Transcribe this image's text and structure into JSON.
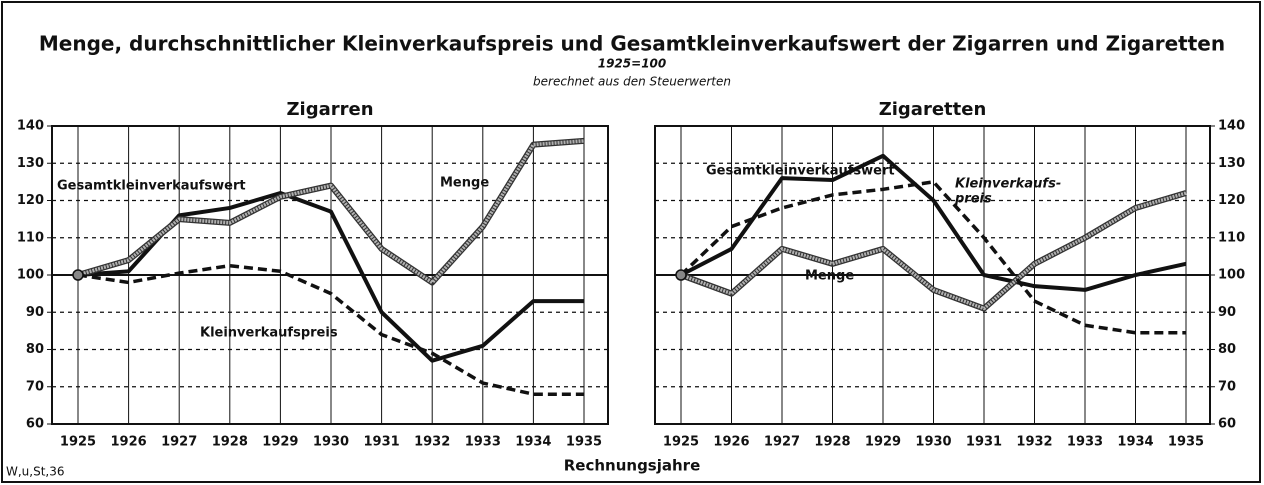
{
  "title": "Menge, durchschnittlicher Kleinverkaufspreis und Gesamtkleinverkaufswert der Zigarren und Zigaretten",
  "subtitle": "1925=100",
  "note": "berechnet aus den Steuerwerten",
  "xlabel": "Rechnungsjahre",
  "source": "W,u,St,36",
  "chart_data": [
    {
      "type": "line",
      "title": "Zigarren",
      "categories": [
        "1925",
        "1926",
        "1927",
        "1928",
        "1929",
        "1930",
        "1931",
        "1932",
        "1933",
        "1934",
        "1935"
      ],
      "ylim": [
        60,
        140
      ],
      "yticks": [
        60,
        70,
        80,
        90,
        100,
        110,
        120,
        130,
        140
      ],
      "grid": true,
      "ytick_side": "left",
      "series": [
        {
          "name": "Gesamtkleinverkaufswert",
          "color": "#111111",
          "style": "solid",
          "values": [
            100,
            101,
            116,
            118,
            122,
            117,
            90,
            77,
            81,
            93,
            93
          ]
        },
        {
          "name": "Menge",
          "color": "#b0b0b0",
          "style": "double",
          "values": [
            100,
            104,
            115,
            114,
            121,
            124,
            107,
            98,
            113,
            135,
            136
          ]
        },
        {
          "name": "Kleinverkaufspreis",
          "color": "#111111",
          "style": "dashed",
          "values": [
            100,
            98,
            100.5,
            102.5,
            101,
            95,
            84,
            79,
            71,
            68,
            68
          ]
        }
      ]
    },
    {
      "type": "line",
      "title": "Zigaretten",
      "categories": [
        "1925",
        "1926",
        "1927",
        "1928",
        "1929",
        "1930",
        "1931",
        "1932",
        "1933",
        "1934",
        "1935"
      ],
      "ylim": [
        60,
        140
      ],
      "yticks": [
        60,
        70,
        80,
        90,
        100,
        110,
        120,
        130,
        140
      ],
      "grid": true,
      "ytick_side": "right",
      "series": [
        {
          "name": "Gesamtkleinverkaufswert",
          "color": "#111111",
          "style": "solid",
          "values": [
            100,
            107,
            126,
            125.5,
            132,
            120,
            100,
            97,
            96,
            100,
            103
          ]
        },
        {
          "name": "Menge",
          "color": "#b0b0b0",
          "style": "double",
          "values": [
            100,
            95,
            107,
            103,
            107,
            96,
            91,
            103,
            110,
            118,
            122
          ]
        },
        {
          "name": "Kleinverkaufspreis",
          "label": [
            "Kleinverkaufs-",
            "preis"
          ],
          "color": "#111111",
          "style": "dashed",
          "values": [
            100,
            113,
            118,
            121.5,
            123,
            125,
            110,
            93,
            86.5,
            84.5,
            84.5
          ]
        }
      ]
    }
  ]
}
